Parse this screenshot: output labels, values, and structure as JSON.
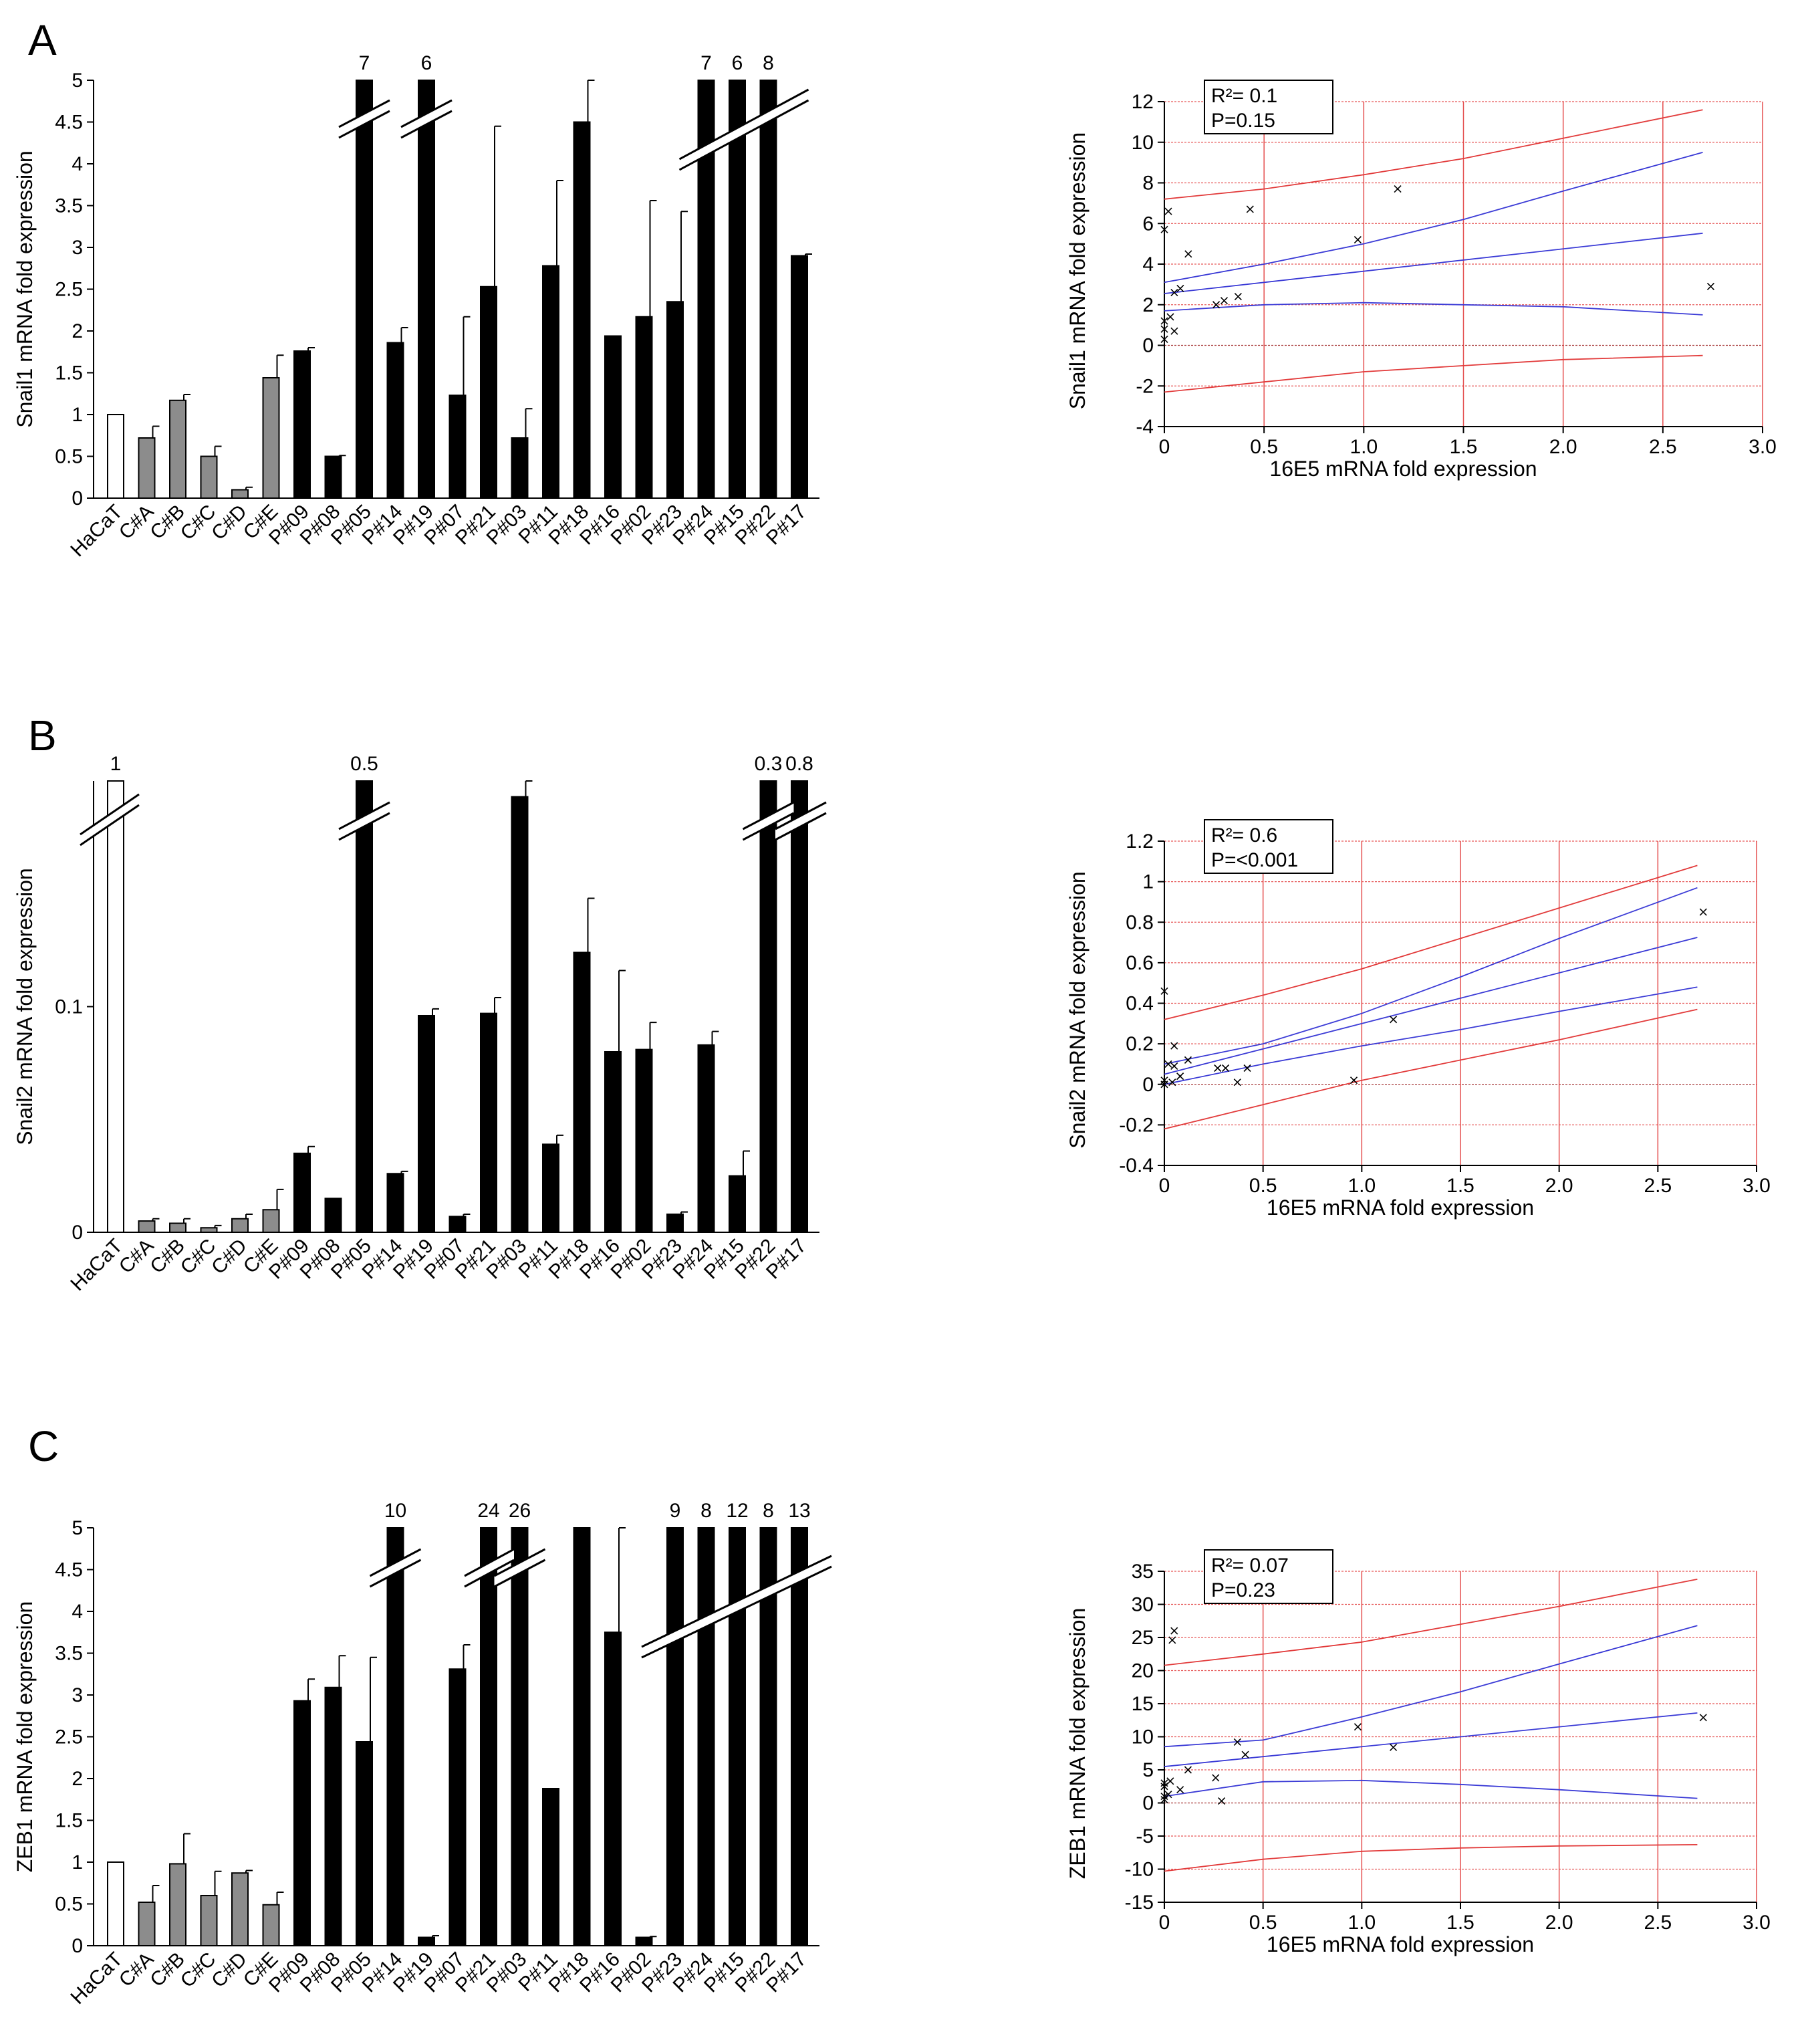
{
  "panels": [
    {
      "letter": "A",
      "bar_chart": {
        "type": "bar",
        "ylabel": "Snail1 mRNA fold expression",
        "ylim": [
          0,
          5
        ],
        "yticks": [
          "0",
          "0.5",
          "1",
          "1.5",
          "2",
          "2.5",
          "3",
          "3.5",
          "4",
          "4.5",
          "5"
        ],
        "categories": [
          "HaCaT",
          "C#A",
          "C#B",
          "C#C",
          "C#D",
          "C#E",
          "P#09",
          "P#08",
          "P#05",
          "P#14",
          "P#19",
          "P#07",
          "P#21",
          "P#03",
          "P#11",
          "P#18",
          "P#16",
          "P#02",
          "P#23",
          "P#24",
          "P#15",
          "P#22",
          "P#17"
        ],
        "values": [
          1,
          0.72,
          1.17,
          0.5,
          0.1,
          1.44,
          1.76,
          0.5,
          5,
          1.86,
          5,
          1.23,
          2.53,
          0.72,
          2.78,
          4.5,
          1.94,
          2.17,
          2.35,
          5,
          5,
          5,
          2.9
        ],
        "errors": [
          0,
          0.14,
          0.07,
          0.12,
          0.03,
          0.27,
          0.04,
          0.01,
          0,
          0.18,
          0,
          0.94,
          1.92,
          0.35,
          1.02,
          0.5,
          0,
          1.39,
          1.08,
          0,
          0,
          0,
          0.02
        ],
        "styles": [
          "white",
          "gray",
          "gray",
          "gray",
          "gray",
          "gray",
          "black",
          "black",
          "black",
          "black",
          "black",
          "black",
          "black",
          "black",
          "black",
          "black",
          "black",
          "black",
          "black",
          "black",
          "black",
          "black",
          "black"
        ],
        "break_labels": [
          {
            "index": 8,
            "text": "7"
          },
          {
            "index": 10,
            "text": "6"
          },
          {
            "index": 19,
            "text": "7"
          },
          {
            "index": 20,
            "text": "6"
          },
          {
            "index": 21,
            "text": "8"
          }
        ]
      },
      "scatter_chart": {
        "type": "scatter",
        "xlabel": "16E5 mRNA fold expression",
        "ylabel": "Snail1 mRNA fold expression",
        "xlim": [
          0,
          3
        ],
        "ylim": [
          -4,
          12
        ],
        "xticks": [
          "0",
          "0.5",
          "1.0",
          "1.5",
          "2.0",
          "2.5",
          "3.0"
        ],
        "yticks": [
          "-4",
          "-2",
          "0",
          "2",
          "4",
          "6",
          "8",
          "10",
          "12"
        ],
        "r2_text": "R²= 0.1",
        "p_text": "P=0.15",
        "points": [
          [
            0,
            0.3
          ],
          [
            0,
            0.8
          ],
          [
            0,
            1.2
          ],
          [
            0,
            5.7
          ],
          [
            0.02,
            6.6
          ],
          [
            0.03,
            1.4
          ],
          [
            0.05,
            0.7
          ],
          [
            0.05,
            2.6
          ],
          [
            0.08,
            2.8
          ],
          [
            0.12,
            4.5
          ],
          [
            0.26,
            2.0
          ],
          [
            0.3,
            2.2
          ],
          [
            0.37,
            2.4
          ],
          [
            0.43,
            6.7
          ],
          [
            0.97,
            5.2
          ],
          [
            1.17,
            7.7
          ],
          [
            2.74,
            2.9
          ]
        ],
        "fit": {
          "a": 2.55,
          "b": 1.1
        },
        "ci_upper": [
          [
            0,
            3.1
          ],
          [
            0.5,
            4.0
          ],
          [
            1,
            5.0
          ],
          [
            1.5,
            6.2
          ],
          [
            2,
            7.6
          ],
          [
            2.7,
            9.5
          ]
        ],
        "ci_lower": [
          [
            0,
            1.7
          ],
          [
            0.5,
            2.0
          ],
          [
            1,
            2.1
          ],
          [
            1.5,
            2.0
          ],
          [
            2,
            1.9
          ],
          [
            2.7,
            1.5
          ]
        ],
        "pi_upper": [
          [
            0,
            7.2
          ],
          [
            0.5,
            7.7
          ],
          [
            1,
            8.4
          ],
          [
            1.5,
            9.2
          ],
          [
            2,
            10.2
          ],
          [
            2.7,
            11.6
          ]
        ],
        "pi_lower": [
          [
            0,
            -2.3
          ],
          [
            0.5,
            -1.8
          ],
          [
            1,
            -1.3
          ],
          [
            1.5,
            -1.0
          ],
          [
            2,
            -0.7
          ],
          [
            2.7,
            -0.5
          ]
        ]
      }
    },
    {
      "letter": "B",
      "bar_chart": {
        "type": "bar",
        "ylabel": "Snail2 mRNA fold expression",
        "ylim": [
          0,
          0.2
        ],
        "yticks": [
          "0",
          "0.1"
        ],
        "categories": [
          "HaCaT",
          "C#A",
          "C#B",
          "C#C",
          "C#D",
          "C#E",
          "P#09",
          "P#08",
          "P#05",
          "P#14",
          "P#19",
          "P#07",
          "P#21",
          "P#03",
          "P#11",
          "P#18",
          "P#16",
          "P#02",
          "P#23",
          "P#24",
          "P#15",
          "P#22",
          "P#17"
        ],
        "values": [
          0.2,
          0.005,
          0.004,
          0.002,
          0.006,
          0.01,
          0.035,
          0.015,
          0.2,
          0.026,
          0.096,
          0.007,
          0.097,
          0.193,
          0.039,
          0.124,
          0.08,
          0.081,
          0.008,
          0.083,
          0.025,
          0.2,
          0.2
        ],
        "errors": [
          0,
          0.001,
          0.002,
          0.001,
          0.002,
          0.009,
          0.003,
          0,
          0,
          0.001,
          0.003,
          0.001,
          0.007,
          0.007,
          0.004,
          0.024,
          0.036,
          0.012,
          0.001,
          0.006,
          0.011,
          0,
          0
        ],
        "styles": [
          "white",
          "gray",
          "gray",
          "gray",
          "gray",
          "gray",
          "black",
          "black",
          "black",
          "black",
          "black",
          "black",
          "black",
          "black",
          "black",
          "black",
          "black",
          "black",
          "black",
          "black",
          "black",
          "black",
          "black"
        ],
        "break_labels": [
          {
            "index": 0,
            "text": "1"
          },
          {
            "index": 8,
            "text": "0.5"
          },
          {
            "index": 21,
            "text": "0.3"
          },
          {
            "index": 22,
            "text": "0.8"
          }
        ]
      },
      "scatter_chart": {
        "type": "scatter",
        "xlabel": "16E5 mRNA fold expression",
        "ylabel": "Snail2 mRNA fold expression",
        "xlim": [
          0,
          3
        ],
        "ylim": [
          -0.4,
          1.2
        ],
        "xticks": [
          "0",
          "0.5",
          "1.0",
          "1.5",
          "2.0",
          "2.5",
          "3.0"
        ],
        "yticks": [
          "-0.4",
          "-0.2",
          "0",
          "0.2",
          "0.4",
          "0.6",
          "0.8",
          "1",
          "1.2"
        ],
        "r2_text": "R²= 0.6",
        "p_text": "P=<0.001",
        "points": [
          [
            0,
            0.0
          ],
          [
            0,
            0.02
          ],
          [
            0,
            0.46
          ],
          [
            0.02,
            0.1
          ],
          [
            0.04,
            0.01
          ],
          [
            0.05,
            0.19
          ],
          [
            0.05,
            0.09
          ],
          [
            0.08,
            0.04
          ],
          [
            0.12,
            0.12
          ],
          [
            0.27,
            0.08
          ],
          [
            0.31,
            0.08
          ],
          [
            0.37,
            0.01
          ],
          [
            0.42,
            0.08
          ],
          [
            0.96,
            0.02
          ],
          [
            1.16,
            0.32
          ],
          [
            2.73,
            0.85
          ]
        ],
        "fit": {
          "a": 0.05,
          "b": 0.25
        },
        "ci_upper": [
          [
            0,
            0.1
          ],
          [
            0.5,
            0.2
          ],
          [
            1,
            0.35
          ],
          [
            1.5,
            0.53
          ],
          [
            2,
            0.72
          ],
          [
            2.7,
            0.97
          ]
        ],
        "ci_lower": [
          [
            0,
            0.0
          ],
          [
            0.5,
            0.1
          ],
          [
            1,
            0.19
          ],
          [
            1.5,
            0.27
          ],
          [
            2,
            0.36
          ],
          [
            2.7,
            0.48
          ]
        ],
        "pi_upper": [
          [
            0,
            0.32
          ],
          [
            0.5,
            0.44
          ],
          [
            1,
            0.57
          ],
          [
            1.5,
            0.72
          ],
          [
            2,
            0.87
          ],
          [
            2.7,
            1.08
          ]
        ],
        "pi_lower": [
          [
            0,
            -0.22
          ],
          [
            0.5,
            -0.1
          ],
          [
            1,
            0.02
          ],
          [
            1.5,
            0.12
          ],
          [
            2,
            0.22
          ],
          [
            2.7,
            0.37
          ]
        ]
      }
    },
    {
      "letter": "C",
      "bar_chart": {
        "type": "bar",
        "ylabel": "ZEB1 mRNA fold expression",
        "ylim": [
          0,
          5
        ],
        "yticks": [
          "0",
          "0.5",
          "1",
          "1.5",
          "2",
          "2.5",
          "3",
          "3.5",
          "4",
          "4.5",
          "5"
        ],
        "categories": [
          "HaCaT",
          "C#A",
          "C#B",
          "C#C",
          "C#D",
          "C#E",
          "P#09",
          "P#08",
          "P#05",
          "P#14",
          "P#19",
          "P#07",
          "P#21",
          "P#03",
          "P#11",
          "P#18",
          "P#16",
          "P#02",
          "P#23",
          "P#24",
          "P#15",
          "P#22",
          "P#17"
        ],
        "values": [
          1,
          0.52,
          0.98,
          0.6,
          0.87,
          0.49,
          2.93,
          3.09,
          2.44,
          5,
          0.1,
          3.31,
          5,
          5,
          1.88,
          5,
          3.75,
          0.1,
          5,
          5,
          5,
          5,
          5
        ],
        "errors": [
          0,
          0.2,
          0.36,
          0.29,
          0.03,
          0.15,
          0.26,
          0.38,
          1.01,
          0,
          0.02,
          0.29,
          0,
          0,
          0,
          0,
          1.25,
          0.01,
          0,
          0,
          0,
          0,
          0
        ],
        "styles": [
          "white",
          "gray",
          "gray",
          "gray",
          "gray",
          "gray",
          "black",
          "black",
          "black",
          "black",
          "black",
          "black",
          "black",
          "black",
          "black",
          "black",
          "black",
          "black",
          "black",
          "black",
          "black",
          "black",
          "black"
        ],
        "break_labels": [
          {
            "index": 9,
            "text": "10"
          },
          {
            "index": 12,
            "text": "24"
          },
          {
            "index": 13,
            "text": "26"
          },
          {
            "index": 18,
            "text": "9"
          },
          {
            "index": 19,
            "text": "8"
          },
          {
            "index": 20,
            "text": "12"
          },
          {
            "index": 21,
            "text": "8"
          },
          {
            "index": 22,
            "text": "13"
          }
        ]
      },
      "scatter_chart": {
        "type": "scatter",
        "xlabel": "16E5 mRNA fold expression",
        "ylabel": "ZEB1 mRNA fold expression",
        "xlim": [
          0,
          3
        ],
        "ylim": [
          -15,
          35
        ],
        "xticks": [
          "0",
          "0.5",
          "1.0",
          "1.5",
          "2.0",
          "2.5",
          "3.0"
        ],
        "yticks": [
          "-15",
          "-10",
          "-5",
          "0",
          "5",
          "10",
          "15",
          "20",
          "25",
          "30",
          "35"
        ],
        "r2_text": "R²= 0.07",
        "p_text": "P=0.23",
        "points": [
          [
            0,
            0.5
          ],
          [
            0,
            1.0
          ],
          [
            0,
            2.5
          ],
          [
            0,
            3.0
          ],
          [
            0.02,
            1.3
          ],
          [
            0.03,
            3.3
          ],
          [
            0.04,
            24.6
          ],
          [
            0.05,
            26.0
          ],
          [
            0.08,
            2.0
          ],
          [
            0.12,
            5.0
          ],
          [
            0.26,
            3.8
          ],
          [
            0.29,
            0.3
          ],
          [
            0.37,
            9.2
          ],
          [
            0.41,
            7.3
          ],
          [
            0.98,
            11.5
          ],
          [
            1.16,
            8.4
          ],
          [
            2.73,
            12.9
          ]
        ],
        "fit": {
          "a": 5.5,
          "b": 3.0
        },
        "ci_upper": [
          [
            0,
            8.5
          ],
          [
            0.5,
            9.5
          ],
          [
            1,
            13.0
          ],
          [
            1.5,
            16.8
          ],
          [
            2,
            21.0
          ],
          [
            2.7,
            26.8
          ]
        ],
        "ci_lower": [
          [
            0,
            1.0
          ],
          [
            0.5,
            3.2
          ],
          [
            1,
            3.4
          ],
          [
            1.5,
            2.8
          ],
          [
            2,
            2.0
          ],
          [
            2.7,
            0.7
          ]
        ],
        "pi_upper": [
          [
            0,
            20.8
          ],
          [
            0.5,
            22.5
          ],
          [
            1,
            24.3
          ],
          [
            1.5,
            27.0
          ],
          [
            2,
            29.7
          ],
          [
            2.7,
            33.8
          ]
        ],
        "pi_lower": [
          [
            0,
            -10.3
          ],
          [
            0.5,
            -8.5
          ],
          [
            1,
            -7.3
          ],
          [
            1.5,
            -6.8
          ],
          [
            2,
            -6.5
          ],
          [
            2.7,
            -6.3
          ]
        ]
      }
    }
  ],
  "colors": {
    "bar_black": "#000000",
    "bar_gray": "#8c8c8c",
    "bar_white": "#ffffff",
    "grid_red": "#e23b3b",
    "grid_dark_red": "#9a1a1a",
    "fit_blue": "#3b3bd6",
    "pi_red": "#e23b3b"
  }
}
